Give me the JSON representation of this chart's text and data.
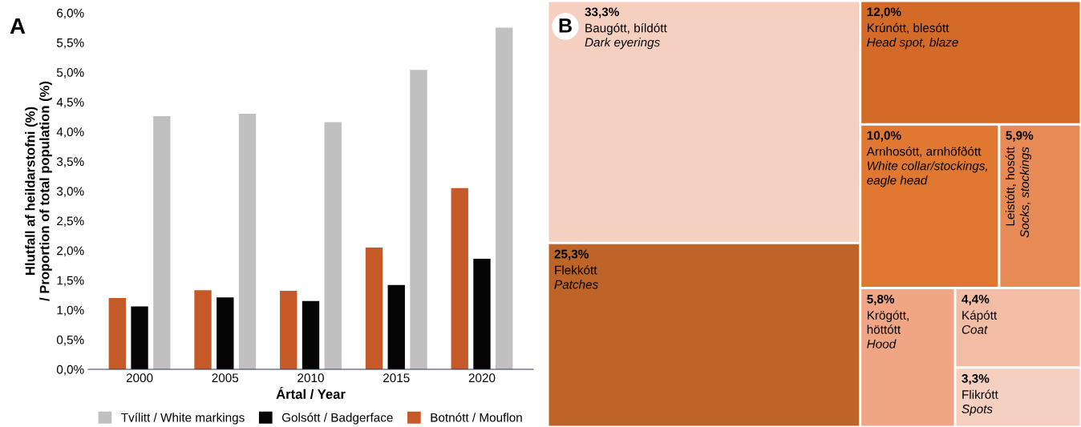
{
  "chart_data": [
    {
      "type": "bar",
      "annotations": [
        "A"
      ],
      "xlabel": "Ártal / Year",
      "ylabel": "Hlutfall af heildarstofni (%)\n/ Proportion of total population (%)",
      "categories": [
        "2000",
        "2005",
        "2010",
        "2015",
        "2020"
      ],
      "series": [
        {
          "name": "Tvílitt / White markings",
          "color": "#c0c0c0",
          "values": [
            4.26,
            4.3,
            4.16,
            5.04,
            5.75
          ]
        },
        {
          "name": "Golsótt / Badgerface",
          "color": "#050505",
          "values": [
            1.06,
            1.21,
            1.15,
            1.42,
            1.86
          ]
        },
        {
          "name": "Botnótt / Mouflon",
          "color": "#c55a28",
          "values": [
            1.2,
            1.33,
            1.32,
            2.05,
            3.05
          ]
        }
      ],
      "ylim": [
        0,
        6
      ],
      "yticks": [
        {
          "value": 0,
          "label": "0,0%"
        },
        {
          "value": 0.5,
          "label": "0,5%"
        },
        {
          "value": 1,
          "label": "1,0%"
        },
        {
          "value": 1.5,
          "label": "1,5%"
        },
        {
          "value": 2,
          "label": "2,0%"
        },
        {
          "value": 2.5,
          "label": "2,5%"
        },
        {
          "value": 3,
          "label": "3,0%"
        },
        {
          "value": 3.5,
          "label": "3,5%"
        },
        {
          "value": 4,
          "label": "4,0%"
        },
        {
          "value": 4.5,
          "label": "4,5%"
        },
        {
          "value": 5,
          "label": "5,0%"
        },
        {
          "value": 5.5,
          "label": "5,5%"
        },
        {
          "value": 6,
          "label": "6,0%"
        }
      ],
      "legend": "bottom",
      "grid": false
    },
    {
      "type": "other",
      "annotations": [
        "B"
      ],
      "categories": [
        "Baugótt, bíldótt\nDark eyerings",
        "Flekkótt\nPatches",
        "Krúnótt, blesótt\nHead spot, blaze",
        "Arnhosótt, arnhöfðótt\nWhite collar/stockings, eagle head",
        "Leistótt, hosótt\nSocks, stockings",
        "Krögótt, höttótt\nHood",
        "Kápótt\nCoat",
        "Flikrótt\nSpots"
      ],
      "values": [
        33.3,
        25.3,
        12.0,
        10.0,
        5.9,
        5.8,
        4.4,
        3.3
      ],
      "value_labels": [
        "33,3%",
        "25,3%",
        "12,0%",
        "10,0%",
        "5,9%",
        "5,8%",
        "4,4%",
        "3,3%"
      ],
      "colors": [
        "#f5d0c0",
        "#bf6428",
        "#d46a28",
        "#e07832",
        "#e88a55",
        "#f0a585",
        "#f3bca5",
        "#f5d0c0"
      ]
    }
  ]
}
